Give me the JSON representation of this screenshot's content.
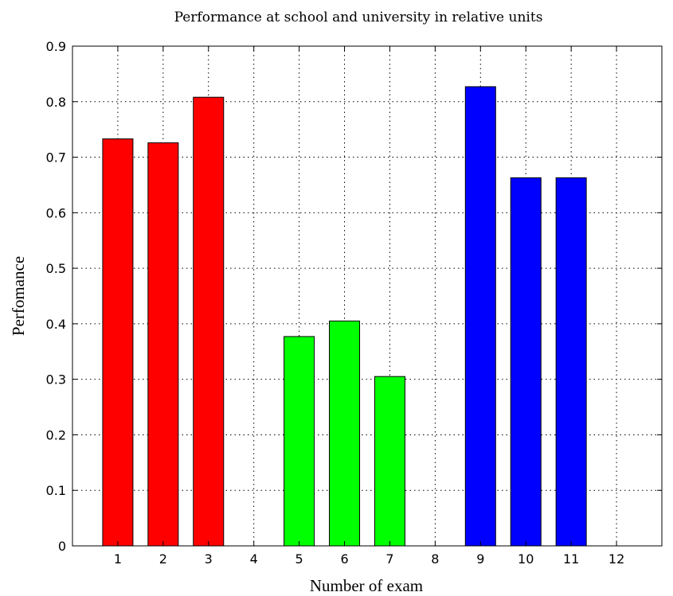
{
  "chart_data": {
    "type": "bar",
    "title": "Performance at school and university in relative units",
    "xlabel": "Number of exam",
    "ylabel": "Perfomance",
    "categories": [
      "1",
      "2",
      "3",
      "4",
      "5",
      "6",
      "7",
      "8",
      "9",
      "10",
      "11",
      "12"
    ],
    "values": [
      0.733,
      0.726,
      0.808,
      0,
      0.377,
      0.405,
      0.305,
      0,
      0.827,
      0.663,
      0.663,
      0
    ],
    "bar_colors": [
      "#ff0000",
      "#ff0000",
      "#ff0000",
      "#ff0000",
      "#00ff00",
      "#00ff00",
      "#00ff00",
      "#00ff00",
      "#0000ff",
      "#0000ff",
      "#0000ff",
      "#0000ff"
    ],
    "xlim": [
      0,
      13
    ],
    "ylim": [
      0,
      0.9
    ],
    "yticks": [
      0,
      0.1,
      0.2,
      0.3,
      0.4,
      0.5,
      0.6,
      0.7,
      0.8,
      0.9
    ],
    "ytick_labels": [
      "0",
      "0.1",
      "0.2",
      "0.3",
      "0.4",
      "0.5",
      "0.6",
      "0.7",
      "0.8",
      "0.9"
    ],
    "grid": true
  }
}
